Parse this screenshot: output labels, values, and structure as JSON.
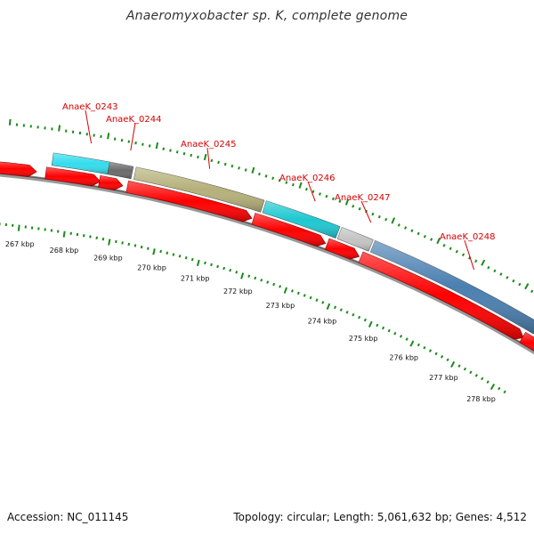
{
  "title": "Anaeromyxobacter sp. K, complete genome",
  "footer": {
    "accession": "Accession: NC_011145",
    "stats": "Topology: circular; Length: 5,061,632 bp; Genes: 4,512"
  },
  "colors": {
    "cds_red": "#ff0000",
    "gene_label": "#d40000",
    "tick_green": "#1a8a1a",
    "backbone": "#808080"
  },
  "genes": [
    {
      "name": "AnaeK_0243",
      "color": "#33ddee"
    },
    {
      "name": "AnaeK_0244",
      "color": "#6b6b6b"
    },
    {
      "name": "AnaeK_0245",
      "color": "#b5b07a"
    },
    {
      "name": "AnaeK_0246",
      "color": "#1ec8d2"
    },
    {
      "name": "AnaeK_0247",
      "color": "#c4c4c4"
    },
    {
      "name": "AnaeK_0248",
      "color": "#4a7fb0"
    }
  ],
  "kbp_labels": [
    "267 kbp",
    "268 kbp",
    "269 kbp",
    "270 kbp",
    "271 kbp",
    "272 kbp",
    "273 kbp",
    "274 kbp",
    "275 kbp",
    "276 kbp",
    "277 kbp",
    "278 kbp"
  ]
}
